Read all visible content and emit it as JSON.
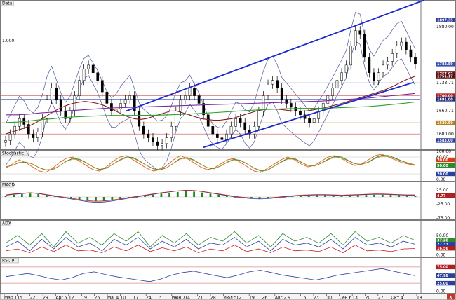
{
  "window": {
    "close_glyph": "X"
  },
  "panels": [
    {
      "id": "data",
      "title": "Data",
      "left_label": "1.000",
      "ticks": [
        {
          "label": "1880.00",
          "v": 1880
        },
        {
          "label": "1733.71",
          "v": 1733.71
        },
        {
          "label": "1691.00",
          "v": 1691
        },
        {
          "label": "1660.71",
          "v": 1660.71
        },
        {
          "label": "1629.50",
          "v": 1629.5
        },
        {
          "label": "1600.00",
          "v": 1600
        }
      ],
      "tags": [
        {
          "label": "1897.35",
          "v": 1897.35,
          "color": "#2b3f9e"
        },
        {
          "label": "1782.59",
          "v": 1782.59,
          "color": "#3a4fb0"
        },
        {
          "label": "1757.02",
          "v": 1757.02,
          "color": "#6a0f1a"
        },
        {
          "label": "1751.17",
          "v": 1751.17,
          "color": "#5a1010"
        },
        {
          "label": "1700.00",
          "v": 1700,
          "color": "#b02020"
        },
        {
          "label": "1691.00",
          "v": 1691,
          "color": "#1c2c7a"
        },
        {
          "label": "1629.50",
          "v": 1629.5,
          "color": "#b7811a"
        },
        {
          "label": "1583.00",
          "v": 1583,
          "color": "#2b3f9e"
        }
      ]
    },
    {
      "id": "stochastic",
      "title": "Stochastic",
      "ticks": [
        {
          "label": "100.00",
          "v": 100
        },
        {
          "label": "80.00",
          "v": 80
        },
        {
          "label": "20.00",
          "v": 20
        },
        {
          "label": "0.00",
          "v": 0
        }
      ],
      "tags": [
        {
          "label": "70.00",
          "v": 70,
          "color": "#d83a1a"
        },
        {
          "label": "50.00",
          "v": 50,
          "color": "#2e8a2e"
        },
        {
          "label": "20.00",
          "v": 20,
          "color": "#2b3f9e"
        }
      ]
    },
    {
      "id": "macd",
      "title": "MACD",
      "ticks": [
        {
          "label": "25.00",
          "v": 25
        },
        {
          "label": "-25.00",
          "v": -25
        },
        {
          "label": "-75.00",
          "v": -75
        }
      ],
      "tags": [
        {
          "label": "4.77",
          "v": 4.77,
          "color": "#b02020"
        }
      ]
    },
    {
      "id": "adx",
      "title": "ADX",
      "ticks": [
        {
          "label": "50.00",
          "v": 50
        },
        {
          "label": "0.00",
          "v": 0
        }
      ],
      "tags": [
        {
          "label": "37.28",
          "v": 37.28,
          "color": "#2e8a2e"
        },
        {
          "label": "27.33",
          "v": 27.33,
          "color": "#2b3f9e"
        },
        {
          "label": "16.56",
          "v": 16.56,
          "color": "#b02020"
        }
      ]
    },
    {
      "id": "rsi",
      "title": "RSI, 9",
      "ticks": [
        {
          "label": "50.00",
          "v": 50
        },
        {
          "label": "0.00",
          "v": 0
        }
      ],
      "tags": [
        {
          "label": "75.00",
          "v": 75,
          "color": "#b02020"
        },
        {
          "label": "47.98",
          "v": 47.98,
          "color": "#2b3f9e"
        },
        {
          "label": "25.00",
          "v": 25,
          "color": "#2b3f9e"
        }
      ]
    }
  ],
  "x_axis_labels": [
    "Map 1",
    "15",
    "22",
    "29",
    "Apr 5",
    "12",
    "19",
    "26",
    "Mai 4",
    "10",
    "17",
    "24",
    "31",
    "Июн 7",
    "14",
    "21",
    "28",
    "Июл 5",
    "12",
    "19",
    "26",
    "Авг 2",
    "9",
    "16",
    "23",
    "30",
    "Сен 6",
    "13",
    "20",
    "27",
    "Окт 4",
    "11",
    "18"
  ],
  "chart_data": [
    {
      "type": "line",
      "title": "Data",
      "series_kind": "candlestick with moving averages, Bollinger Bands and trend channel",
      "ylim": [
        1560,
        1950
      ],
      "grid": false,
      "close": [
        1583,
        1600,
        1620,
        1640,
        1625,
        1600,
        1590,
        1605,
        1640,
        1690,
        1720,
        1690,
        1660,
        1640,
        1660,
        1700,
        1740,
        1770,
        1780,
        1760,
        1740,
        1710,
        1680,
        1660,
        1665,
        1680,
        1690,
        1700,
        1660,
        1620,
        1600,
        1590,
        1580,
        1570,
        1575,
        1590,
        1620,
        1660,
        1690,
        1700,
        1720,
        1700,
        1680,
        1650,
        1620,
        1600,
        1590,
        1585,
        1600,
        1620,
        1640,
        1630,
        1610,
        1600,
        1620,
        1660,
        1700,
        1730,
        1740,
        1720,
        1690,
        1680,
        1670,
        1660,
        1650,
        1640,
        1630,
        1640,
        1660,
        1680,
        1700,
        1720,
        1740,
        1760,
        1780,
        1830,
        1870,
        1860,
        1800,
        1760,
        1740,
        1760,
        1780,
        1790,
        1810,
        1830,
        1840,
        1820,
        1800,
        1782
      ],
      "ma_short": [
        1600,
        1605,
        1610,
        1615,
        1622,
        1630,
        1640,
        1650,
        1660,
        1668,
        1675,
        1680,
        1683,
        1685,
        1683,
        1680,
        1675,
        1668,
        1660,
        1652,
        1645,
        1640,
        1638,
        1640,
        1645,
        1650,
        1655,
        1660,
        1660,
        1655,
        1650,
        1645,
        1640,
        1638,
        1636,
        1636,
        1638,
        1640,
        1645,
        1650,
        1655,
        1660,
        1663,
        1665,
        1665,
        1664,
        1662,
        1660,
        1660,
        1660,
        1662,
        1665,
        1668,
        1672,
        1676,
        1680,
        1685,
        1690,
        1695,
        1700,
        1705,
        1710,
        1715,
        1722,
        1730,
        1738,
        1745,
        1751
      ],
      "ma_long": [
        1650,
        1650,
        1652,
        1655,
        1657,
        1660,
        1662,
        1664,
        1666,
        1668,
        1669,
        1670,
        1671,
        1672,
        1673,
        1674,
        1675,
        1676,
        1677,
        1678,
        1679,
        1680,
        1681,
        1682,
        1683,
        1684,
        1685,
        1686,
        1688,
        1690,
        1692,
        1694,
        1697,
        1700,
        1703,
        1706
      ],
      "channel": {
        "lower_start": 1565,
        "lower_end": 1735,
        "upper_start": 1660,
        "upper_end": 1950
      }
    },
    {
      "type": "line",
      "title": "Stochastic",
      "ylim": [
        0,
        100
      ],
      "series": [
        {
          "name": "%K",
          "values": [
            40,
            55,
            70,
            60,
            45,
            30,
            25,
            40,
            60,
            75,
            80,
            65,
            50,
            35,
            30,
            45,
            65,
            80,
            85,
            70,
            55,
            40,
            30,
            35,
            50,
            70,
            85,
            75,
            60,
            45,
            35,
            40,
            55,
            70,
            75,
            60,
            45,
            30,
            25,
            40,
            55,
            70,
            80,
            70,
            55,
            45,
            50,
            65,
            80,
            85,
            75,
            60,
            50,
            55,
            70,
            85,
            90,
            80,
            70,
            60,
            55,
            50
          ]
        },
        {
          "name": "%D",
          "values": [
            45,
            50,
            60,
            62,
            55,
            42,
            33,
            35,
            48,
            65,
            75,
            72,
            60,
            45,
            35,
            40,
            55,
            70,
            80,
            78,
            65,
            50,
            38,
            34,
            42,
            58,
            75,
            78,
            70,
            55,
            42,
            38,
            48,
            62,
            72,
            68,
            55,
            40,
            30,
            33,
            48,
            62,
            75,
            75,
            62,
            50,
            48,
            58,
            72,
            82,
            80,
            68,
            56,
            54,
            62,
            77,
            86,
            85,
            76,
            66,
            58,
            52
          ]
        }
      ]
    },
    {
      "type": "bar",
      "title": "MACD",
      "ylim": [
        -75,
        50
      ],
      "values": [
        5,
        8,
        10,
        12,
        10,
        6,
        2,
        -2,
        -6,
        -10,
        -14,
        -16,
        -15,
        -12,
        -8,
        -4,
        0,
        4,
        8,
        12,
        15,
        18,
        20,
        19,
        16,
        12,
        8,
        4,
        0,
        -3,
        -5,
        -6,
        -5,
        -3,
        0,
        2,
        4,
        5,
        6,
        6,
        5,
        4,
        5,
        6,
        7,
        8,
        8,
        7,
        6,
        5,
        5
      ]
    },
    {
      "type": "line",
      "title": "ADX",
      "ylim": [
        0,
        80
      ],
      "series": [
        {
          "name": "ADX",
          "values": [
            30,
            50,
            25,
            55,
            20,
            60,
            30,
            45,
            25,
            55,
            35,
            60,
            20,
            50,
            30,
            55,
            25,
            45,
            35,
            60,
            30,
            50,
            20,
            55,
            35,
            45,
            30,
            55,
            25,
            60,
            35,
            45,
            30,
            50,
            37
          ]
        },
        {
          "name": "+DI",
          "values": [
            20,
            35,
            10,
            40,
            15,
            45,
            20,
            30,
            10,
            40,
            25,
            45,
            15,
            35,
            20,
            40,
            15,
            30,
            25,
            45,
            20,
            35,
            10,
            40,
            25,
            30,
            20,
            40,
            15,
            45,
            25,
            30,
            20,
            35,
            27
          ]
        },
        {
          "name": "-DI",
          "values": [
            10,
            15,
            5,
            20,
            8,
            25,
            10,
            12,
            5,
            20,
            10,
            25,
            8,
            18,
            10,
            20,
            5,
            15,
            10,
            25,
            8,
            15,
            5,
            20,
            10,
            12,
            8,
            20,
            5,
            25,
            10,
            12,
            8,
            15,
            16
          ]
        }
      ]
    },
    {
      "type": "line",
      "title": "RSI, 9",
      "ylim": [
        0,
        100
      ],
      "values": [
        45,
        50,
        55,
        48,
        40,
        35,
        42,
        55,
        60,
        52,
        45,
        40,
        35,
        30,
        38,
        50,
        58,
        62,
        55,
        48,
        42,
        50,
        60,
        65,
        58,
        50,
        45,
        40,
        35,
        42,
        50,
        55,
        60,
        65,
        70,
        62,
        55,
        48
      ]
    }
  ]
}
